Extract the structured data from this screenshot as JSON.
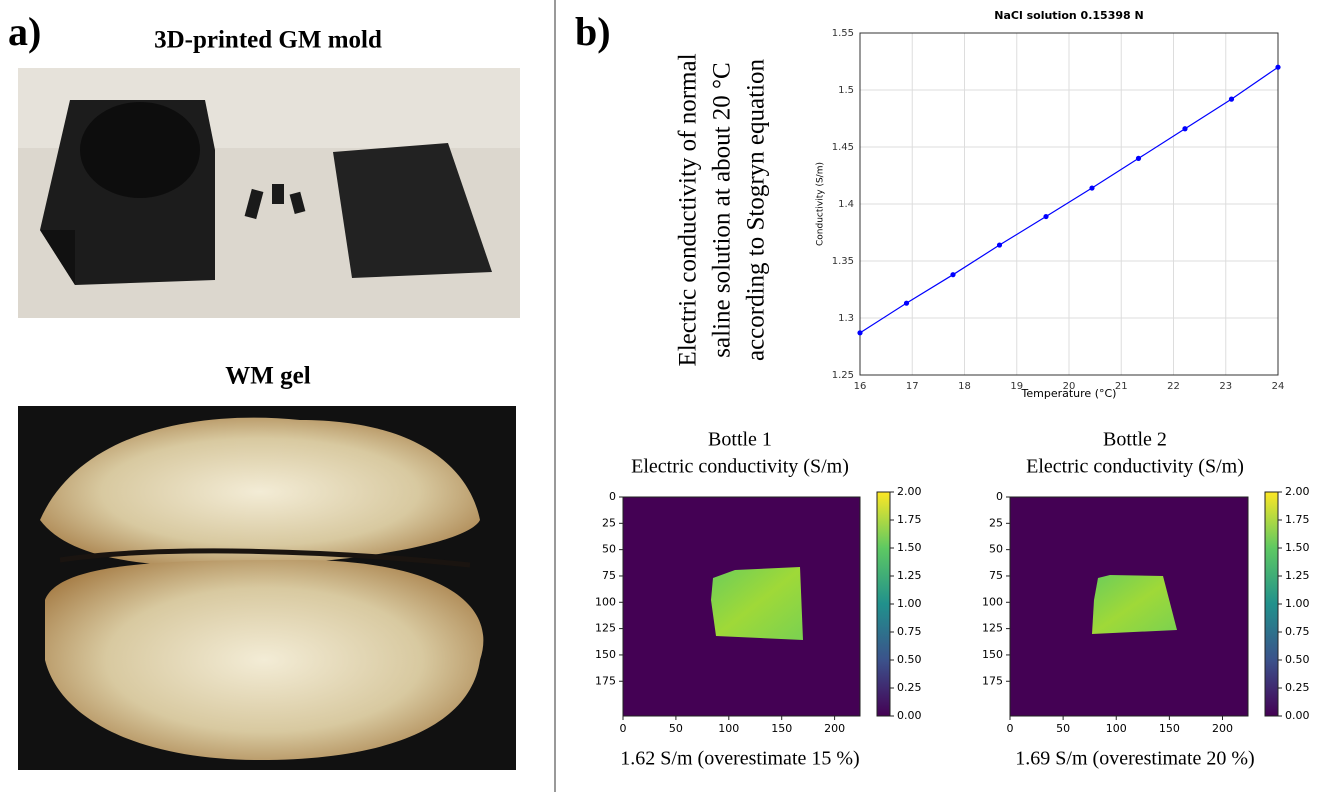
{
  "panel_a": {
    "label": "a)",
    "photo_1_title": "3D-printed GM mold",
    "photo_2_title": "WM gel"
  },
  "panel_b": {
    "label": "b)",
    "side_text": [
      "Electric conductivity of normal",
      "saline solution at about 20 °C",
      "according to Stogryn equation"
    ]
  },
  "chart_data": [
    {
      "type": "line",
      "title": "NaCl solution 0.15398 N",
      "x_label": "Temperature (°C)",
      "y_label": "Conductivity (S/m)",
      "xlim": [
        16,
        24
      ],
      "xticks": [
        16,
        17,
        18,
        19,
        20,
        21,
        22,
        23,
        24
      ],
      "ylim": [
        1.25,
        1.55
      ],
      "yticks": [
        1.25,
        1.3,
        1.35,
        1.4,
        1.45,
        1.5,
        1.55
      ],
      "grid": true,
      "series": [
        {
          "color": "#0000ff",
          "x": [
            16,
            16.89,
            17.78,
            18.67,
            19.56,
            20.44,
            21.33,
            22.22,
            23.11,
            24
          ],
          "values": [
            1.287,
            1.313,
            1.338,
            1.364,
            1.389,
            1.414,
            1.44,
            1.466,
            1.492,
            1.52
          ]
        }
      ]
    },
    {
      "type": "heatmap",
      "title": [
        "Bottle 1",
        "Electric conductivity (S/m)"
      ],
      "colormap": "viridis",
      "xlim": [
        0,
        224
      ],
      "xticks": [
        0,
        50,
        100,
        150,
        200
      ],
      "ylim": [
        0,
        208
      ],
      "y_inverted": true,
      "yticks": [
        0,
        25,
        50,
        75,
        100,
        125,
        150,
        175
      ],
      "colorbar": {
        "lim": [
          0,
          2
        ],
        "ticks": [
          {
            "value": 0,
            "label": "0.00"
          },
          {
            "value": 0.25,
            "label": "0.25"
          },
          {
            "value": 0.5,
            "label": "0.50"
          },
          {
            "value": 0.75,
            "label": "0.75"
          },
          {
            "value": 1,
            "label": "1.00"
          },
          {
            "value": 1.25,
            "label": "1.25"
          },
          {
            "value": 1.5,
            "label": "1.50"
          },
          {
            "value": 1.75,
            "label": "1.75"
          },
          {
            "value": 2,
            "label": "2.00"
          }
        ]
      },
      "caption": "1.62 S/m (overestimate 15 %)"
    },
    {
      "type": "heatmap",
      "title": [
        "Bottle 2",
        "Electric conductivity (S/m)"
      ],
      "colormap": "viridis",
      "xlim": [
        0,
        224
      ],
      "xticks": [
        0,
        50,
        100,
        150,
        200
      ],
      "ylim": [
        0,
        208
      ],
      "y_inverted": true,
      "yticks": [
        0,
        25,
        50,
        75,
        100,
        125,
        150,
        175
      ],
      "colorbar": {
        "lim": [
          0,
          2
        ],
        "ticks": [
          {
            "value": 0,
            "label": "0.00"
          },
          {
            "value": 0.25,
            "label": "0.25"
          },
          {
            "value": 0.5,
            "label": "0.50"
          },
          {
            "value": 0.75,
            "label": "0.75"
          },
          {
            "value": 1,
            "label": "1.00"
          },
          {
            "value": 1.25,
            "label": "1.25"
          },
          {
            "value": 1.5,
            "label": "1.50"
          },
          {
            "value": 1.75,
            "label": "1.75"
          },
          {
            "value": 2,
            "label": "2.00"
          }
        ]
      },
      "caption": "1.69 S/m (overestimate 20 %)"
    }
  ]
}
